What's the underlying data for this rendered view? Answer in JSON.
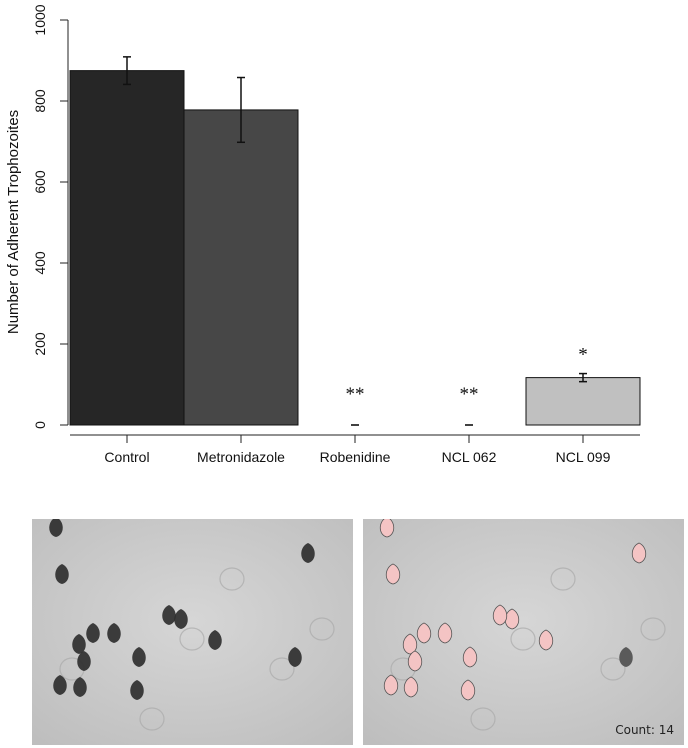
{
  "chart_data": {
    "type": "bar",
    "title": "",
    "xlabel": "",
    "ylabel": "Number of Adherent Trophozoites",
    "ylim": [
      0,
      1000
    ],
    "yticks": [
      0,
      200,
      400,
      600,
      800,
      1000
    ],
    "grid": false,
    "categories": [
      "Control",
      "Metronidazole",
      "Robenidine",
      "NCL 062",
      "NCL 099"
    ],
    "values": [
      875,
      778,
      0,
      0,
      117
    ],
    "errors": [
      34,
      80,
      0,
      0,
      10
    ],
    "annotations": [
      "",
      "",
      "**",
      "**",
      "*"
    ],
    "colors": [
      "#262626",
      "#474747",
      "#ffffff",
      "#ffffff",
      "#c0c0c0"
    ]
  },
  "images": {
    "left": {
      "description_icon": "trophozoite-micrograph"
    },
    "right": {
      "description_icon": "trophozoite-micrograph-highlighted",
      "count_label": "Count: 14"
    }
  }
}
